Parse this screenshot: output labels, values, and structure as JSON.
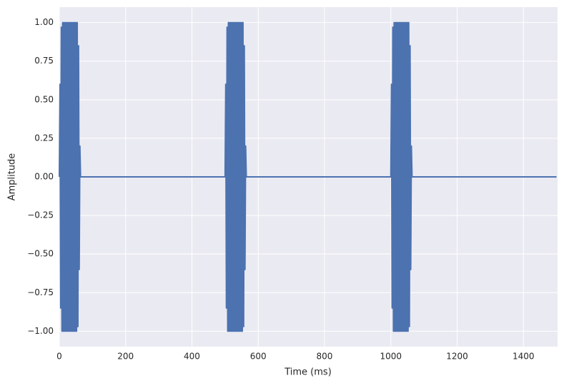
{
  "chart_data": {
    "type": "line",
    "x_label": "Time (ms)",
    "y_label": "Amplitude",
    "x": [
      0,
      2,
      4,
      6,
      8,
      10,
      12,
      14,
      16,
      18,
      20,
      22,
      24,
      26,
      28,
      30,
      32,
      34,
      36,
      38,
      40,
      42,
      44,
      46,
      48,
      50,
      52,
      54,
      56,
      58,
      60,
      62,
      64,
      500,
      502,
      504,
      506,
      508,
      510,
      512,
      514,
      516,
      518,
      520,
      522,
      524,
      526,
      528,
      530,
      532,
      534,
      536,
      538,
      540,
      542,
      544,
      546,
      548,
      550,
      552,
      554,
      556,
      558,
      560,
      562,
      564,
      1000,
      1002,
      1004,
      1006,
      1008,
      1010,
      1012,
      1014,
      1016,
      1018,
      1020,
      1022,
      1024,
      1026,
      1028,
      1030,
      1032,
      1034,
      1036,
      1038,
      1040,
      1042,
      1044,
      1046,
      1048,
      1050,
      1052,
      1054,
      1056,
      1058,
      1060,
      1062,
      1064,
      1500
    ],
    "series": [
      {
        "color": "#4c72b0",
        "values": [
          0,
          0.6,
          -0.85,
          0.97,
          -1,
          1,
          -1,
          1,
          -1,
          1,
          -1,
          1,
          -1,
          1,
          -1,
          1,
          -1,
          1,
          -1,
          1,
          -1,
          1,
          -1,
          1,
          -1,
          1,
          -1,
          1,
          -0.97,
          0.85,
          -0.6,
          0.2,
          0,
          0,
          0.6,
          -0.85,
          0.97,
          -1,
          1,
          -1,
          1,
          -1,
          1,
          -1,
          1,
          -1,
          1,
          -1,
          1,
          -1,
          1,
          -1,
          1,
          -1,
          1,
          -1,
          1,
          -1,
          1,
          -1,
          1,
          -0.97,
          0.85,
          -0.6,
          0.2,
          0,
          0,
          0.6,
          -0.85,
          0.97,
          -1,
          1,
          -1,
          1,
          -1,
          1,
          -1,
          1,
          -1,
          1,
          -1,
          1,
          -1,
          1,
          -1,
          1,
          -1,
          1,
          -1,
          1,
          -1,
          1,
          -1,
          1,
          -0.97,
          0.85,
          -0.6,
          0.2,
          0,
          0
        ]
      }
    ],
    "xlim": [
      0,
      1503
    ],
    "ylim": [
      -1.1,
      1.1
    ],
    "xticks": [
      0,
      200,
      400,
      600,
      800,
      1000,
      1200,
      1400
    ],
    "yticks": [
      {
        "value": -1,
        "label": "−1.00"
      },
      {
        "value": -0.75,
        "label": "−0.75"
      },
      {
        "value": -0.5,
        "label": "−0.50"
      },
      {
        "value": -0.25,
        "label": "−0.25"
      },
      {
        "value": 0,
        "label": "0.00"
      },
      {
        "value": 0.25,
        "label": "0.25"
      },
      {
        "value": 0.5,
        "label": "0.50"
      },
      {
        "value": 0.75,
        "label": "0.75"
      },
      {
        "value": 1,
        "label": "1.00"
      }
    ],
    "grid": true
  }
}
